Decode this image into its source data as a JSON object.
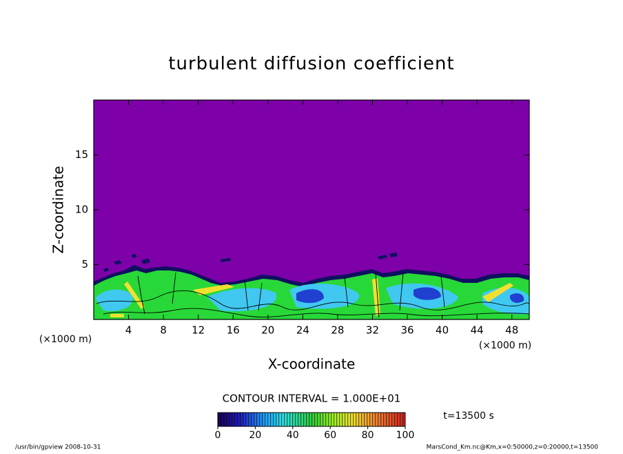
{
  "chart_data": {
    "type": "contour",
    "title": "turbulent diffusion coefficient",
    "x_label": "X-coordinate",
    "y_label": "Z-coordinate",
    "x_unit": "(×1000 m)",
    "xlim": [
      0,
      50
    ],
    "xticks": [
      4,
      8,
      12,
      16,
      20,
      24,
      28,
      32,
      36,
      40,
      44,
      48
    ],
    "ylim": [
      0,
      20
    ],
    "yticks": [
      5,
      10,
      15
    ],
    "contour_interval": "CONTOUR INTERVAL = 1.000E+01",
    "time_label": "t=13500 s",
    "colorbar": {
      "lim": [
        0,
        100
      ],
      "ticks": [
        0,
        20,
        40,
        60,
        80,
        100
      ]
    },
    "footer_left": "/usr/bin/gpview   2008-10-31",
    "footer_right": "MarsCond_Km.nc@Km,x=0:50000,z=0:20000,t=13500"
  }
}
